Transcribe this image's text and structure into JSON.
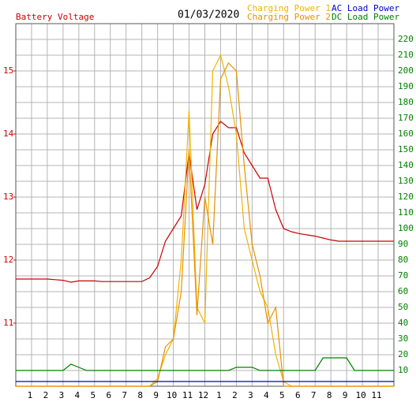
{
  "chart_data": {
    "type": "line",
    "title": "01/03/2020",
    "x": [
      0,
      0.5,
      1,
      1.5,
      2,
      2.5,
      3,
      3.5,
      4,
      4.5,
      5,
      5.5,
      6,
      6.5,
      7,
      7.5,
      8,
      8.5,
      9,
      9.5,
      10,
      10.5,
      11,
      11.5,
      12,
      12.5,
      13,
      13.5,
      14,
      14.5,
      15,
      15.5,
      16,
      16.5,
      17,
      17.5,
      18,
      18.5,
      19,
      19.5,
      20,
      20.5,
      21,
      21.5,
      22,
      22.5,
      23,
      23.5,
      24
    ],
    "xlim": [
      0,
      24
    ],
    "xticks": [
      1,
      2,
      3,
      4,
      5,
      6,
      7,
      8,
      9,
      10,
      11,
      12,
      {
        "value": 13,
        "label": "1"
      },
      {
        "value": 14,
        "label": "2"
      },
      {
        "value": 15,
        "label": "3"
      },
      {
        "value": 16,
        "label": "4"
      },
      {
        "value": 17,
        "label": "5"
      },
      {
        "value": 18,
        "label": "6"
      },
      {
        "value": 19,
        "label": "7"
      },
      {
        "value": 20,
        "label": "8"
      },
      {
        "value": 21,
        "label": "9"
      },
      {
        "value": 22,
        "label": "10"
      },
      {
        "value": 23,
        "label": "11"
      }
    ],
    "ylim": [
      10,
      15.75
    ],
    "yticks": [
      11,
      12,
      13,
      14,
      15
    ],
    "y2lim": [
      0,
      230
    ],
    "y2ticks": [
      10,
      20,
      30,
      40,
      50,
      60,
      70,
      80,
      90,
      100,
      110,
      120,
      130,
      140,
      150,
      160,
      170,
      180,
      190,
      200,
      210,
      220
    ],
    "grid": true,
    "series": [
      {
        "name": "Battery Voltage",
        "color": "#cc0000",
        "axis": "y",
        "values": [
          11.7,
          11.7,
          11.7,
          11.7,
          11.7,
          11.69,
          11.68,
          11.65,
          11.67,
          11.67,
          11.67,
          11.66,
          11.66,
          11.66,
          11.66,
          11.66,
          11.66,
          11.72,
          11.9,
          12.3,
          12.5,
          12.7,
          13.7,
          12.8,
          13.2,
          14.0,
          14.2,
          14.1,
          14.1,
          13.7,
          13.5,
          13.3,
          13.3,
          12.8,
          12.5,
          12.45,
          12.42,
          12.4,
          12.38,
          12.35,
          12.32,
          12.3,
          12.3,
          12.3,
          12.3,
          12.3,
          12.3,
          12.3,
          12.3
        ]
      },
      {
        "name": "Charging Power 1",
        "color": "#f0b400",
        "axis": "y2",
        "values": [
          0,
          0,
          0,
          0,
          0,
          0,
          0,
          0,
          0,
          0,
          0,
          0,
          0,
          0,
          0,
          0,
          0,
          0,
          5,
          20,
          30,
          80,
          175,
          50,
          40,
          200,
          210,
          190,
          160,
          100,
          80,
          60,
          50,
          20,
          3,
          0,
          0,
          0,
          0,
          0,
          0,
          0,
          0,
          0,
          0,
          0,
          0,
          0,
          0
        ]
      },
      {
        "name": "Charging Power 2",
        "color": "#e89000",
        "axis": "y2",
        "values": [
          0,
          0,
          0,
          0,
          0,
          0,
          0,
          0,
          0,
          0,
          0,
          0,
          0,
          0,
          0,
          0,
          0,
          0,
          3,
          25,
          30,
          60,
          150,
          45,
          120,
          90,
          195,
          205,
          200,
          140,
          90,
          70,
          40,
          50,
          0,
          0,
          0,
          0,
          0,
          0,
          0,
          0,
          0,
          0,
          0,
          0,
          0,
          0,
          0
        ]
      },
      {
        "name": "AC Load Power",
        "color": "#0000cc",
        "axis": "y2",
        "values": [
          3,
          3,
          3,
          3,
          3,
          3,
          3,
          3,
          3,
          3,
          3,
          3,
          3,
          3,
          3,
          3,
          3,
          3,
          3,
          3,
          3,
          3,
          3,
          3,
          3,
          3,
          3,
          3,
          3,
          3,
          3,
          3,
          3,
          3,
          3,
          3,
          3,
          3,
          3,
          3,
          3,
          3,
          3,
          3,
          3,
          3,
          3,
          3,
          3
        ]
      },
      {
        "name": "DC Load Power",
        "color": "#008000",
        "axis": "y2",
        "values": [
          10,
          10,
          10,
          10,
          10,
          10,
          10,
          14,
          12,
          10,
          10,
          10,
          10,
          10,
          10,
          10,
          10,
          10,
          10,
          10,
          10,
          10,
          10,
          10,
          10,
          10,
          10,
          10,
          12,
          12,
          12,
          10,
          10,
          10,
          10,
          10,
          10,
          10,
          10,
          18,
          18,
          18,
          18,
          10,
          10,
          10,
          10,
          10,
          10
        ]
      }
    ]
  }
}
